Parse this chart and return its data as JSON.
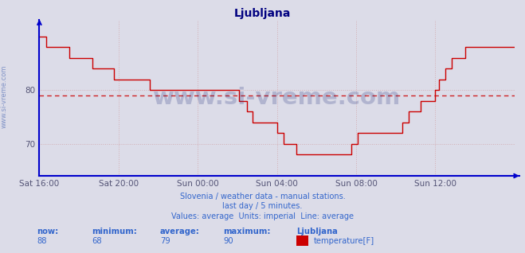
{
  "title": "Ljubljana",
  "title_color": "#000080",
  "bg_color": "#dcdce8",
  "plot_bg_color": "#dcdce8",
  "line_color": "#cc0000",
  "avg_line_color": "#cc0000",
  "avg_value": 79,
  "ylim": [
    64,
    93
  ],
  "yticks": [
    70,
    80
  ],
  "axis_color": "#0000cc",
  "grid_color": "#cc8888",
  "grid_alpha": 0.55,
  "watermark": "www.si-vreme.com",
  "watermark_color": "#1a2a7a",
  "watermark_alpha": 0.22,
  "footer_line1": "Slovenia / weather data - manual stations.",
  "footer_line2": "last day / 5 minutes.",
  "footer_line3": "Values: average  Units: imperial  Line: average",
  "footer_color": "#3366cc",
  "stats_color": "#3366cc",
  "xtick_labels": [
    "Sat 16:00",
    "Sat 20:00",
    "Sun 00:00",
    "Sun 04:00",
    "Sun 08:00",
    "Sun 12:00"
  ],
  "temperature_data": [
    90,
    90,
    90,
    90,
    88,
    88,
    88,
    88,
    88,
    88,
    88,
    88,
    88,
    88,
    88,
    88,
    88,
    88,
    86,
    86,
    86,
    86,
    86,
    86,
    86,
    86,
    86,
    86,
    86,
    86,
    86,
    86,
    84,
    84,
    84,
    84,
    84,
    84,
    84,
    84,
    84,
    84,
    84,
    84,
    84,
    82,
    82,
    82,
    82,
    82,
    82,
    82,
    82,
    82,
    82,
    82,
    82,
    82,
    82,
    82,
    82,
    82,
    82,
    82,
    82,
    82,
    82,
    80,
    80,
    80,
    80,
    80,
    80,
    80,
    80,
    80,
    80,
    80,
    80,
    80,
    80,
    80,
    80,
    80,
    80,
    80,
    80,
    80,
    80,
    80,
    80,
    80,
    80,
    80,
    80,
    80,
    80,
    80,
    80,
    80,
    80,
    80,
    80,
    80,
    80,
    80,
    80,
    80,
    80,
    80,
    80,
    80,
    80,
    80,
    80,
    80,
    80,
    80,
    80,
    80,
    80,
    78,
    78,
    78,
    78,
    78,
    76,
    76,
    76,
    74,
    74,
    74,
    74,
    74,
    74,
    74,
    74,
    74,
    74,
    74,
    74,
    74,
    74,
    74,
    72,
    72,
    72,
    72,
    70,
    70,
    70,
    70,
    70,
    70,
    70,
    70,
    68,
    68,
    68,
    68,
    68,
    68,
    68,
    68,
    68,
    68,
    68,
    68,
    68,
    68,
    68,
    68,
    68,
    68,
    68,
    68,
    68,
    68,
    68,
    68,
    68,
    68,
    68,
    68,
    68,
    68,
    68,
    68,
    68,
    70,
    70,
    70,
    70,
    72,
    72,
    72,
    72,
    72,
    72,
    72,
    72,
    72,
    72,
    72,
    72,
    72,
    72,
    72,
    72,
    72,
    72,
    72,
    72,
    72,
    72,
    72,
    72,
    72,
    72,
    72,
    74,
    74,
    74,
    74,
    76,
    76,
    76,
    76,
    76,
    76,
    76,
    78,
    78,
    78,
    78,
    78,
    78,
    78,
    78,
    78,
    80,
    80,
    82,
    82,
    82,
    82,
    84,
    84,
    84,
    84,
    86,
    86,
    86,
    86,
    86,
    86,
    86,
    86,
    88,
    88,
    88,
    88,
    88,
    88,
    88,
    88,
    88,
    88,
    88,
    88,
    88,
    88,
    88,
    88,
    88,
    88,
    88,
    88,
    88,
    88,
    88,
    88,
    88,
    88,
    88,
    88,
    88,
    88,
    88
  ]
}
